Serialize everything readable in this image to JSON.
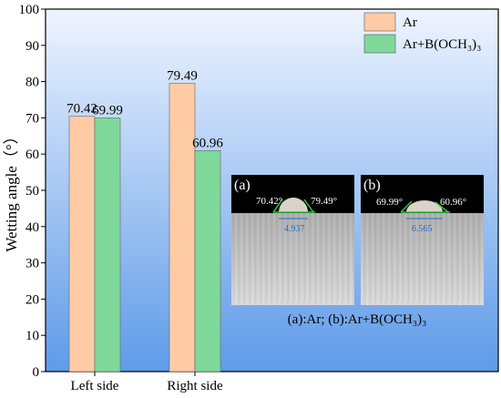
{
  "chart_data": {
    "type": "bar",
    "categories": [
      "Left side",
      "Right side"
    ],
    "series": [
      {
        "name": "Ar",
        "values": [
          70.42,
          79.49
        ],
        "color": "#FFCBA4"
      },
      {
        "name": "Ar+B(OCH₃)₃",
        "values": [
          69.99,
          60.96
        ],
        "color": "#7FD99A"
      }
    ],
    "data_labels": [
      [
        "70.42",
        "79.49"
      ],
      [
        "69.99",
        "60.96"
      ]
    ],
    "ylabel": "Wetting angle（°）",
    "xlabel": "",
    "ylim": [
      0,
      100
    ],
    "yticks": [
      0,
      10,
      20,
      30,
      40,
      50,
      60,
      70,
      80,
      90,
      100
    ],
    "legend_position": "top-right",
    "background_gradient": [
      "#EEF4FF",
      "#5E9BE8"
    ]
  },
  "inset": {
    "panels": [
      {
        "letter": "(a)",
        "left_angle": "70.42°",
        "right_angle": "79.49°",
        "width": "4.937"
      },
      {
        "letter": "(b)",
        "left_angle": "69.99°",
        "right_angle": "60.96°",
        "width": "6.565"
      }
    ],
    "caption": "(a):Ar; (b):Ar+B(OCH₃)₃"
  }
}
